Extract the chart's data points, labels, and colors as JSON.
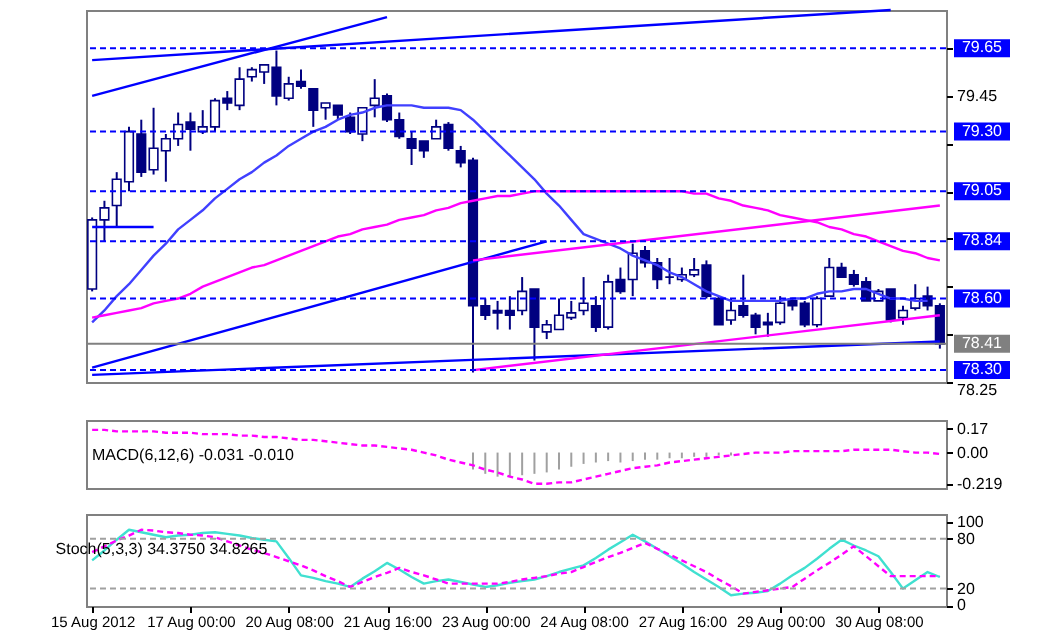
{
  "chart_data": [
    {
      "type": "candlestick",
      "color": "#000080",
      "tick_labels": "y",
      "categories": [
        null,
        null,
        null,
        null,
        null,
        null,
        null,
        null,
        null,
        null,
        null,
        null,
        null,
        null,
        null,
        null,
        null,
        null,
        null,
        null,
        null,
        null,
        null,
        null,
        null,
        null,
        null,
        null,
        null,
        null,
        null,
        null,
        null,
        null,
        null,
        null,
        null,
        null,
        null,
        null,
        null,
        null,
        null,
        null,
        null,
        null,
        null,
        null,
        null,
        null,
        null,
        null,
        null,
        null,
        null,
        null,
        null,
        null,
        null,
        null,
        null,
        null,
        null,
        null,
        null,
        null,
        null,
        null,
        null,
        null
      ],
      "ohlc": [
        [
          78.64,
          78.94,
          78.63,
          78.93
        ],
        [
          78.93,
          79.01,
          78.84,
          78.98
        ],
        [
          78.99,
          79.13,
          78.9,
          79.1
        ],
        [
          79.09,
          79.32,
          79.05,
          79.3
        ],
        [
          79.29,
          79.35,
          79.11,
          79.13
        ],
        [
          79.14,
          79.4,
          79.12,
          79.23
        ],
        [
          79.22,
          79.29,
          79.09,
          79.27
        ],
        [
          79.27,
          79.38,
          79.24,
          79.33
        ],
        [
          79.34,
          79.38,
          79.22,
          79.31
        ],
        [
          79.3,
          79.39,
          79.29,
          79.32
        ],
        [
          79.32,
          79.44,
          79.3,
          79.43
        ],
        [
          79.44,
          79.47,
          79.39,
          79.42
        ],
        [
          79.41,
          79.57,
          79.39,
          79.52
        ],
        [
          79.53,
          79.57,
          79.51,
          79.56
        ],
        [
          79.55,
          79.58,
          79.5,
          79.58
        ],
        [
          79.57,
          79.64,
          79.41,
          79.45
        ],
        [
          79.44,
          79.53,
          79.43,
          79.5
        ],
        [
          79.51,
          79.56,
          79.48,
          79.49
        ],
        [
          79.48,
          79.48,
          79.32,
          79.39
        ],
        [
          79.4,
          79.42,
          79.35,
          79.42
        ],
        [
          79.41,
          79.41,
          79.35,
          79.37
        ],
        [
          79.36,
          79.38,
          79.29,
          79.3
        ],
        [
          79.29,
          79.4,
          79.26,
          79.4
        ],
        [
          79.41,
          79.52,
          79.36,
          79.44
        ],
        [
          79.45,
          79.46,
          79.34,
          79.35
        ],
        [
          79.35,
          79.38,
          79.27,
          79.28
        ],
        [
          79.27,
          79.3,
          79.16,
          79.23
        ],
        [
          79.26,
          79.26,
          79.19,
          79.22
        ],
        [
          79.27,
          79.35,
          79.27,
          79.32
        ],
        [
          79.33,
          79.34,
          79.22,
          79.23
        ],
        [
          79.22,
          79.24,
          79.15,
          79.17
        ],
        [
          79.18,
          79.19,
          78.29,
          78.57
        ],
        [
          78.57,
          78.6,
          78.51,
          78.53
        ],
        [
          78.55,
          78.59,
          78.47,
          78.54
        ],
        [
          78.55,
          78.61,
          78.47,
          78.53
        ],
        [
          78.55,
          78.69,
          78.53,
          78.63
        ],
        [
          78.64,
          78.64,
          78.34,
          78.48
        ],
        [
          78.46,
          78.51,
          78.43,
          78.49
        ],
        [
          78.47,
          78.6,
          78.47,
          78.53
        ],
        [
          78.52,
          78.59,
          78.51,
          78.54
        ],
        [
          78.55,
          78.69,
          78.53,
          78.58
        ],
        [
          78.57,
          78.61,
          78.46,
          78.48
        ],
        [
          78.48,
          78.7,
          78.47,
          78.67
        ],
        [
          78.68,
          78.73,
          78.62,
          78.63
        ],
        [
          78.68,
          78.83,
          78.61,
          78.79
        ],
        [
          78.8,
          78.82,
          78.73,
          78.75
        ],
        [
          78.75,
          78.77,
          78.64,
          78.68
        ],
        [
          78.69,
          78.77,
          78.66,
          78.69
        ],
        [
          78.68,
          78.73,
          78.67,
          78.7
        ],
        [
          78.7,
          78.77,
          78.69,
          78.72
        ],
        [
          78.74,
          78.76,
          78.6,
          78.61
        ],
        [
          78.6,
          78.61,
          78.49,
          78.49
        ],
        [
          78.51,
          78.6,
          78.49,
          78.55
        ],
        [
          78.57,
          78.7,
          78.52,
          78.53
        ],
        [
          78.53,
          78.54,
          78.45,
          78.48
        ],
        [
          78.5,
          78.54,
          78.44,
          78.49
        ],
        [
          78.5,
          78.61,
          78.49,
          78.58
        ],
        [
          78.59,
          78.6,
          78.55,
          78.57
        ],
        [
          78.58,
          78.59,
          78.48,
          78.49
        ],
        [
          78.49,
          78.61,
          78.48,
          78.6
        ],
        [
          78.61,
          78.77,
          78.61,
          78.73
        ],
        [
          78.73,
          78.75,
          78.69,
          78.69
        ],
        [
          78.7,
          78.72,
          78.65,
          78.66
        ],
        [
          78.67,
          78.69,
          78.59,
          78.59
        ],
        [
          78.59,
          78.64,
          78.59,
          78.63
        ],
        [
          78.64,
          78.64,
          78.5,
          78.51
        ],
        [
          78.52,
          78.57,
          78.49,
          78.55
        ],
        [
          78.56,
          78.66,
          78.55,
          78.6
        ],
        [
          78.61,
          78.65,
          78.55,
          78.57
        ],
        [
          78.57,
          78.58,
          78.39,
          78.41
        ]
      ],
      "series": [
        {
          "type": "line",
          "color": "#4040ff",
          "values": [
            78.5,
            78.55,
            78.61,
            78.66,
            78.72,
            78.78,
            78.83,
            78.89,
            78.93,
            78.97,
            79.02,
            79.06,
            79.1,
            79.13,
            79.17,
            79.2,
            79.24,
            79.27,
            79.3,
            79.32,
            79.35,
            79.37,
            79.38,
            79.4,
            79.41,
            79.41,
            79.41,
            79.4,
            79.4,
            79.4,
            79.39,
            79.35,
            79.3,
            79.25,
            79.2,
            79.15,
            79.1,
            79.04,
            78.99,
            78.93,
            78.87,
            78.85,
            78.83,
            78.81,
            78.78,
            78.76,
            78.74,
            78.71,
            78.69,
            78.66,
            78.63,
            78.61,
            78.59,
            78.59,
            78.59,
            78.59,
            78.59,
            78.6,
            78.6,
            78.62,
            78.63,
            78.63,
            78.64,
            78.64,
            78.62,
            78.6,
            78.6,
            78.59,
            78.59,
            null
          ]
        },
        {
          "type": "line",
          "color": "#ff00ff",
          "values": [
            78.52,
            78.53,
            78.54,
            78.55,
            78.56,
            78.58,
            78.59,
            78.6,
            78.62,
            78.65,
            78.67,
            78.69,
            78.71,
            78.73,
            78.74,
            78.76,
            78.78,
            78.8,
            78.82,
            78.84,
            78.86,
            78.87,
            78.89,
            78.9,
            78.91,
            78.93,
            78.94,
            78.95,
            78.97,
            78.98,
            79.0,
            79.01,
            79.02,
            79.03,
            79.03,
            79.04,
            79.05,
            79.05,
            79.05,
            79.05,
            79.05,
            79.05,
            79.05,
            79.05,
            79.05,
            79.05,
            79.05,
            79.05,
            79.05,
            79.04,
            79.04,
            79.02,
            79.01,
            78.99,
            78.98,
            78.97,
            78.95,
            78.94,
            78.93,
            78.92,
            78.9,
            78.89,
            78.87,
            78.86,
            78.84,
            78.82,
            78.8,
            78.79,
            78.77,
            78.76
          ]
        },
        {
          "type": "line",
          "color": "#0000ff",
          "values": [
            79.45,
            null,
            null,
            null,
            null,
            null,
            null,
            null,
            null,
            null,
            null,
            null,
            null,
            null,
            null,
            null,
            null,
            null,
            null,
            null,
            null,
            null,
            null,
            null,
            79.78,
            null,
            null,
            null,
            null,
            null,
            null,
            null,
            null,
            null,
            null,
            null,
            null,
            null,
            null,
            null,
            null,
            null,
            null,
            null,
            null,
            null,
            null,
            null,
            null,
            null,
            null,
            null,
            null,
            null,
            null,
            null,
            null,
            null,
            null,
            null,
            null,
            null,
            null,
            null,
            null,
            null,
            null,
            null,
            null,
            null
          ]
        },
        {
          "type": "line",
          "color": "#0000ff",
          "values": [
            79.6,
            null,
            null,
            null,
            null,
            null,
            null,
            null,
            null,
            null,
            null,
            null,
            null,
            null,
            null,
            null,
            null,
            null,
            null,
            null,
            null,
            null,
            null,
            null,
            null,
            null,
            null,
            null,
            null,
            null,
            null,
            null,
            null,
            null,
            null,
            null,
            null,
            null,
            null,
            null,
            null,
            null,
            null,
            null,
            null,
            null,
            null,
            null,
            null,
            null,
            null,
            null,
            null,
            null,
            null,
            null,
            null,
            null,
            null,
            null,
            null,
            null,
            null,
            null,
            null,
            79.81,
            null,
            null,
            null,
            null
          ]
        },
        {
          "type": "line",
          "color": "#0000ff",
          "values": [
            78.9,
            null,
            null,
            null,
            null,
            78.9,
            null,
            null,
            null,
            null,
            null,
            null,
            null,
            null,
            null,
            null,
            null,
            null,
            null,
            null,
            null,
            null,
            null,
            null,
            null,
            null,
            null,
            null,
            null,
            null,
            null,
            null,
            null,
            null,
            null,
            null,
            null,
            null,
            null,
            null,
            null,
            null,
            null,
            null,
            null,
            null,
            null,
            null,
            null,
            null,
            null,
            null,
            null,
            null,
            null,
            null,
            null,
            null,
            null,
            null,
            null,
            null,
            null,
            null,
            null,
            null,
            null,
            null,
            null,
            null
          ]
        },
        {
          "type": "line",
          "color": "#0000ff",
          "values": [
            78.31,
            null,
            null,
            null,
            null,
            null,
            null,
            null,
            null,
            null,
            null,
            null,
            null,
            null,
            null,
            null,
            null,
            null,
            null,
            null,
            null,
            null,
            null,
            null,
            null,
            null,
            null,
            null,
            null,
            null,
            null,
            null,
            null,
            null,
            null,
            null,
            null,
            78.84,
            null,
            null,
            null,
            null,
            null,
            null,
            null,
            null,
            null,
            null,
            null,
            null,
            null,
            null,
            null,
            null,
            null,
            null,
            null,
            null,
            null,
            null,
            null,
            null,
            null,
            null,
            null,
            null,
            null,
            null,
            null,
            null
          ]
        },
        {
          "type": "line",
          "color": "#0000ff",
          "values": [
            78.28,
            null,
            null,
            null,
            null,
            null,
            null,
            null,
            null,
            null,
            null,
            null,
            null,
            null,
            null,
            null,
            null,
            null,
            null,
            null,
            null,
            null,
            null,
            null,
            null,
            null,
            null,
            null,
            null,
            null,
            null,
            null,
            null,
            null,
            null,
            null,
            null,
            null,
            null,
            null,
            null,
            null,
            null,
            null,
            null,
            null,
            null,
            null,
            null,
            null,
            null,
            null,
            null,
            null,
            null,
            null,
            null,
            null,
            null,
            null,
            null,
            null,
            null,
            null,
            null,
            null,
            null,
            null,
            null,
            78.42
          ]
        },
        {
          "type": "line",
          "color": "#ff00ff",
          "values": [
            null,
            null,
            null,
            null,
            null,
            null,
            null,
            null,
            null,
            null,
            null,
            null,
            null,
            null,
            null,
            null,
            null,
            null,
            null,
            null,
            null,
            null,
            null,
            null,
            null,
            null,
            null,
            null,
            null,
            null,
            null,
            78.76,
            null,
            null,
            null,
            null,
            null,
            null,
            null,
            null,
            null,
            null,
            null,
            null,
            null,
            null,
            null,
            null,
            null,
            null,
            null,
            null,
            null,
            null,
            null,
            null,
            null,
            null,
            null,
            null,
            null,
            null,
            null,
            null,
            null,
            null,
            null,
            null,
            null,
            78.99
          ]
        },
        {
          "type": "line",
          "color": "#ff00ff",
          "values": [
            null,
            null,
            null,
            null,
            null,
            null,
            null,
            null,
            null,
            null,
            null,
            null,
            null,
            null,
            null,
            null,
            null,
            null,
            null,
            null,
            null,
            null,
            null,
            null,
            null,
            null,
            null,
            null,
            null,
            null,
            null,
            78.3,
            null,
            null,
            null,
            null,
            null,
            null,
            null,
            null,
            null,
            null,
            null,
            null,
            null,
            null,
            null,
            null,
            null,
            null,
            null,
            null,
            null,
            null,
            null,
            null,
            null,
            null,
            null,
            null,
            null,
            null,
            null,
            null,
            null,
            null,
            null,
            null,
            null,
            78.53
          ]
        }
      ],
      "ref_lines": [
        {
          "axis": "y",
          "value": 79.65,
          "label": "79.65",
          "color": "#0000ff",
          "line_style": "dashed"
        },
        {
          "axis": "y",
          "value": 79.3,
          "label": "79.30",
          "color": "#0000ff",
          "line_style": "dashed"
        },
        {
          "axis": "y",
          "value": 79.05,
          "label": "79.05",
          "color": "#0000ff",
          "line_style": "dashed"
        },
        {
          "axis": "y",
          "value": 78.84,
          "label": "78.84",
          "color": "#0000ff",
          "line_style": "dashed"
        },
        {
          "axis": "y",
          "value": 78.6,
          "label": "78.60",
          "color": "#0000ff",
          "line_style": "dashed"
        },
        {
          "axis": "y",
          "value": 78.41,
          "label": "78.41",
          "color": "#808080",
          "line_style": "solid"
        },
        {
          "axis": "y",
          "value": 78.3,
          "label": "78.30",
          "color": "#0000ff",
          "line_style": "dashed"
        }
      ],
      "ylim": [
        78.25,
        79.81
      ],
      "yticks": [
        {
          "value": 79.65,
          "label": null
        },
        79.45,
        {
          "value": 79.25,
          "label": null
        },
        {
          "value": 79.05,
          "label": null
        },
        {
          "value": 78.85,
          "label": null
        },
        {
          "value": 78.65,
          "label": null
        },
        {
          "value": 78.45,
          "label": null
        },
        78.25
      ]
    },
    {
      "type": "line",
      "title": "MACD(6,12,6) -0.031 -0.010",
      "tick_labels": "y",
      "categories": [
        null,
        null,
        null,
        null,
        null,
        null,
        null,
        null,
        null,
        null,
        null,
        null,
        null,
        null,
        null,
        null,
        null,
        null,
        null,
        null,
        null,
        null,
        null,
        null,
        null,
        null,
        null,
        null,
        null,
        null,
        null,
        null,
        null,
        null,
        null,
        null,
        null,
        null,
        null,
        null,
        null,
        null,
        null,
        null,
        null,
        null,
        null,
        null,
        null,
        null,
        null,
        null,
        null,
        null,
        null,
        null,
        null,
        null,
        null,
        null,
        null,
        null,
        null,
        null,
        null,
        null,
        null,
        null,
        null,
        null
      ],
      "series": [
        {
          "type": "bar",
          "color": "#a0a0a0",
          "values": [
            null,
            null,
            null,
            null,
            null,
            null,
            null,
            null,
            null,
            null,
            null,
            null,
            null,
            null,
            null,
            null,
            null,
            null,
            null,
            null,
            null,
            null,
            null,
            null,
            null,
            null,
            null,
            null,
            null,
            null,
            null,
            -0.12,
            -0.15,
            -0.17,
            -0.17,
            -0.16,
            -0.15,
            -0.14,
            -0.12,
            -0.1,
            -0.08,
            -0.07,
            -0.06,
            -0.07,
            -0.06,
            -0.05,
            -0.05,
            -0.04,
            -0.04,
            -0.03,
            -0.03,
            -0.02,
            -0.02,
            null,
            null,
            null,
            null,
            null,
            null,
            null,
            null,
            null,
            null,
            null,
            null,
            null,
            null,
            null,
            null,
            null
          ]
        },
        {
          "type": "line",
          "color": "#ff00ff",
          "line_style": "dashed",
          "values": [
            0.16,
            0.16,
            0.15,
            0.15,
            0.15,
            0.15,
            0.14,
            0.14,
            0.14,
            0.13,
            0.13,
            0.13,
            0.12,
            0.12,
            0.11,
            0.11,
            0.1,
            0.09,
            0.09,
            0.08,
            0.07,
            0.06,
            0.05,
            0.05,
            0.04,
            0.03,
            0.02,
            0,
            -0.02,
            -0.05,
            -0.07,
            -0.09,
            -0.12,
            -0.14,
            -0.17,
            -0.19,
            -0.22,
            -0.22,
            -0.21,
            -0.21,
            -0.19,
            -0.17,
            -0.15,
            -0.13,
            -0.11,
            -0.1,
            -0.09,
            -0.07,
            -0.06,
            -0.05,
            -0.04,
            -0.03,
            -0.02,
            -0.01,
            0,
            0,
            0,
            0.01,
            0.01,
            0.01,
            0.01,
            0.01,
            0.02,
            0.02,
            0.02,
            0.02,
            0.01,
            0,
            0,
            -0.01
          ]
        }
      ],
      "ylim": [
        -0.25,
        0.23
      ],
      "yticks": [
        0.17,
        {
          "value": 0,
          "label": "0.00"
        },
        -0.219
      ]
    },
    {
      "type": "line",
      "title": "Stoch(5,3,3) 34.3750 34.8265",
      "categories": [
        "15 Aug 2012",
        null,
        null,
        null,
        null,
        null,
        null,
        null,
        "17 Aug 00:00",
        null,
        null,
        null,
        null,
        null,
        null,
        null,
        "20 Aug 08:00",
        null,
        null,
        null,
        null,
        null,
        null,
        null,
        "21 Aug 16:00",
        null,
        null,
        null,
        null,
        null,
        null,
        null,
        "23 Aug 00:00",
        null,
        null,
        null,
        null,
        null,
        null,
        null,
        "24 Aug 08:00",
        null,
        null,
        null,
        null,
        null,
        null,
        null,
        "27 Aug 16:00",
        null,
        null,
        null,
        null,
        null,
        null,
        null,
        "29 Aug 00:00",
        null,
        null,
        null,
        null,
        null,
        null,
        null,
        "30 Aug 08:00",
        null,
        null,
        null,
        null,
        null
      ],
      "series": [
        {
          "type": "line",
          "color": "#40e0d0",
          "values": [
            54,
            66,
            79,
            91,
            88,
            85,
            82,
            84,
            85,
            87,
            88,
            86,
            84,
            81,
            79,
            77,
            57,
            36,
            33,
            29,
            26,
            22,
            32,
            41,
            51,
            43,
            34,
            26,
            29,
            31,
            28,
            25,
            22,
            24,
            27,
            29,
            31,
            35,
            40,
            44,
            48,
            57,
            67,
            76,
            85,
            77,
            68,
            59,
            50,
            40,
            31,
            22,
            12,
            14,
            15,
            17,
            26,
            36,
            45,
            56,
            68,
            79,
            72,
            66,
            59,
            40,
            20,
            30,
            40,
            34
          ]
        },
        {
          "type": "line",
          "color": "#ff00ff",
          "line_style": "dashed",
          "values": [
            64,
            71,
            78,
            84,
            91,
            90,
            88,
            87,
            85,
            84,
            82,
            77,
            72,
            67,
            63,
            58,
            53,
            48,
            42,
            35,
            29,
            22,
            28,
            34,
            39,
            45,
            40,
            36,
            31,
            26,
            26,
            26,
            26,
            26,
            28,
            31,
            33,
            35,
            38,
            40,
            46,
            52,
            58,
            63,
            69,
            75,
            68,
            61,
            54,
            47,
            40,
            31,
            23,
            14,
            16,
            18,
            20,
            22,
            32,
            42,
            51,
            61,
            71,
            59,
            47,
            35,
            35,
            35,
            35,
            35
          ]
        }
      ],
      "ref_lines": [
        {
          "axis": "y",
          "value": 80,
          "color": "#a0a0a0",
          "line_style": "dashed"
        },
        {
          "axis": "y",
          "value": 20,
          "color": "#a0a0a0",
          "line_style": "dashed"
        }
      ],
      "ylim": [
        -1,
        110
      ],
      "yticks": [
        100,
        80,
        20,
        0
      ]
    }
  ]
}
